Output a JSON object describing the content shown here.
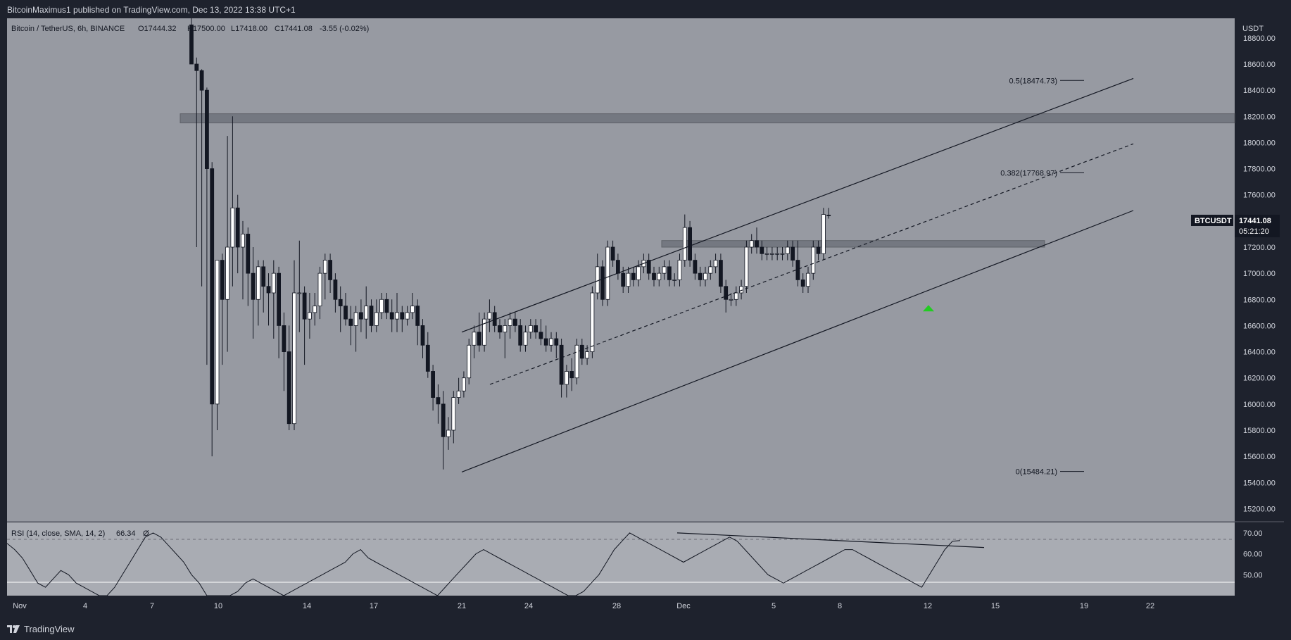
{
  "header": {
    "published_text": "BitcoinMaximus1 published on TradingView.com, Dec 13, 2022 13:38 UTC+1"
  },
  "legend": {
    "symbol": "Bitcoin / TetherUS, 6h, BINANCE",
    "open": "O17444.32",
    "high": "H17500.00",
    "low": "L17418.00",
    "close": "C17441.08",
    "change": "-3.55 (-0.02%)"
  },
  "price_axis": {
    "currency": "USDT",
    "ticks": [
      "18800.00",
      "18600.00",
      "18400.00",
      "18200.00",
      "18000.00",
      "17800.00",
      "17600.00",
      "17400.00",
      "17200.00",
      "17000.00",
      "16800.00",
      "16600.00",
      "16400.00",
      "16200.00",
      "16000.00",
      "15800.00",
      "15600.00",
      "15400.00",
      "15200.00"
    ],
    "tag_symbol": "BTCUSDT",
    "tag_price": "17441.08",
    "tag_countdown": "05:21:20"
  },
  "rsi": {
    "legend": "RSI (14, close, SMA, 14, 2)",
    "value": "66.34",
    "extra": "Ø",
    "ticks": [
      "70.00",
      "60.00",
      "50.00"
    ]
  },
  "time_axis": {
    "labels": [
      "Nov",
      "4",
      "7",
      "10",
      "14",
      "17",
      "21",
      "24",
      "28",
      "Dec",
      "5",
      "8",
      "12",
      "15",
      "19",
      "22"
    ]
  },
  "fib_labels": [
    "0.5(18474.73)",
    "0.382(17768.97)",
    "0(15484.21)"
  ],
  "footer": {
    "brand": "TradingView"
  },
  "colors": {
    "background": "#1e222d",
    "pane": "#979aa2",
    "bull_candle": "#ffffff",
    "bear_candle": "#131722",
    "marker": "#22cc22",
    "resistance_zone": "#6f737c"
  },
  "chart_data": {
    "type": "candlestick",
    "title": "Bitcoin / TetherUS, 6h, BINANCE",
    "interval": "6h",
    "ylim": [
      15100,
      18950
    ],
    "y_unit": "USDT",
    "last_price": 17441.08,
    "candles_ohlc": [
      [
        18900,
        18950,
        18700,
        18600
      ],
      [
        18600,
        18650,
        17200,
        18550
      ],
      [
        18550,
        18560,
        16900,
        18400
      ],
      [
        18400,
        18420,
        16300,
        17800
      ],
      [
        17800,
        17850,
        15600,
        16000
      ],
      [
        16000,
        16100,
        15800,
        17100
      ],
      [
        17100,
        17150,
        16300,
        16800
      ],
      [
        16800,
        18050,
        16400,
        17200
      ],
      [
        17200,
        18200,
        16900,
        17500
      ],
      [
        17500,
        17600,
        17000,
        17200
      ],
      [
        17200,
        17400,
        16800,
        17300
      ],
      [
        17300,
        17350,
        16750,
        17000
      ],
      [
        17000,
        17200,
        16500,
        16800
      ],
      [
        16800,
        17100,
        16600,
        17050
      ],
      [
        17050,
        17100,
        16700,
        16900
      ],
      [
        16900,
        17000,
        16600,
        16850
      ],
      [
        16850,
        17100,
        16500,
        17000
      ],
      [
        17000,
        17050,
        16350,
        16600
      ],
      [
        16600,
        16700,
        16100,
        16400
      ],
      [
        16400,
        16600,
        15800,
        15850
      ],
      [
        15850,
        17100,
        15800,
        16850
      ],
      [
        16850,
        17250,
        16550,
        16850
      ],
      [
        16850,
        16900,
        16300,
        16650
      ],
      [
        16650,
        16850,
        16500,
        16700
      ],
      [
        16700,
        16850,
        16600,
        16750
      ],
      [
        16750,
        17050,
        16650,
        17000
      ],
      [
        17000,
        17150,
        16800,
        17100
      ],
      [
        17100,
        17150,
        16850,
        16950
      ],
      [
        16950,
        17000,
        16700,
        16800
      ],
      [
        16800,
        16900,
        16550,
        16750
      ],
      [
        16750,
        16850,
        16600,
        16650
      ],
      [
        16650,
        16750,
        16450,
        16600
      ],
      [
        16600,
        16750,
        16400,
        16700
      ],
      [
        16700,
        16800,
        16550,
        16650
      ],
      [
        16650,
        16900,
        16500,
        16750
      ],
      [
        16750,
        16800,
        16550,
        16600
      ],
      [
        16600,
        16800,
        16550,
        16700
      ],
      [
        16700,
        16850,
        16650,
        16800
      ],
      [
        16800,
        16850,
        16650,
        16700
      ],
      [
        16700,
        16800,
        16550,
        16650
      ],
      [
        16650,
        16850,
        16550,
        16700
      ],
      [
        16700,
        16750,
        16550,
        16650
      ],
      [
        16650,
        16750,
        16600,
        16700
      ],
      [
        16700,
        16850,
        16650,
        16750
      ],
      [
        16750,
        16800,
        16450,
        16600
      ],
      [
        16600,
        16650,
        16350,
        16450
      ],
      [
        16450,
        16550,
        16200,
        16250
      ],
      [
        16250,
        16300,
        15950,
        16050
      ],
      [
        16050,
        16150,
        15850,
        16000
      ],
      [
        16000,
        16100,
        15500,
        15750
      ],
      [
        15750,
        15900,
        15650,
        15800
      ],
      [
        15800,
        16100,
        15700,
        16050
      ],
      [
        16050,
        16200,
        16000,
        16100
      ],
      [
        16100,
        16250,
        16050,
        16200
      ],
      [
        16200,
        16500,
        16150,
        16450
      ],
      [
        16450,
        16600,
        16350,
        16550
      ],
      [
        16550,
        16700,
        16400,
        16450
      ],
      [
        16450,
        16700,
        16400,
        16650
      ],
      [
        16650,
        16800,
        16550,
        16700
      ],
      [
        16700,
        16750,
        16550,
        16600
      ],
      [
        16600,
        16650,
        16500,
        16550
      ],
      [
        16550,
        16650,
        16350,
        16600
      ],
      [
        16600,
        16700,
        16500,
        16650
      ],
      [
        16650,
        16700,
        16550,
        16600
      ],
      [
        16600,
        16650,
        16400,
        16450
      ],
      [
        16450,
        16600,
        16400,
        16550
      ],
      [
        16550,
        16650,
        16500,
        16600
      ],
      [
        16600,
        16650,
        16500,
        16550
      ],
      [
        16550,
        16650,
        16450,
        16500
      ],
      [
        16500,
        16600,
        16400,
        16450
      ],
      [
        16450,
        16550,
        16400,
        16500
      ],
      [
        16500,
        16550,
        16350,
        16450
      ],
      [
        16450,
        16500,
        16050,
        16150
      ],
      [
        16150,
        16300,
        16050,
        16250
      ],
      [
        16250,
        16350,
        16100,
        16200
      ],
      [
        16200,
        16500,
        16150,
        16450
      ],
      [
        16450,
        16500,
        16300,
        16350
      ],
      [
        16350,
        16450,
        16300,
        16400
      ],
      [
        16400,
        16900,
        16350,
        16850
      ],
      [
        16850,
        17150,
        16800,
        17050
      ],
      [
        17050,
        17100,
        16750,
        16800
      ],
      [
        16800,
        17250,
        16750,
        17200
      ],
      [
        17200,
        17250,
        17050,
        17100
      ],
      [
        17100,
        17150,
        16950,
        17000
      ],
      [
        17000,
        17050,
        16850,
        16900
      ],
      [
        16900,
        17050,
        16850,
        17000
      ],
      [
        17000,
        17050,
        16900,
        16950
      ],
      [
        16950,
        17100,
        16900,
        17050
      ],
      [
        17050,
        17150,
        17000,
        17100
      ],
      [
        17100,
        17150,
        16950,
        17000
      ],
      [
        17000,
        17050,
        16900,
        16950
      ],
      [
        16950,
        17050,
        16900,
        17000
      ],
      [
        17000,
        17100,
        16950,
        17050
      ],
      [
        17050,
        17100,
        16900,
        16950
      ],
      [
        16950,
        17000,
        16900,
        16950
      ],
      [
        16950,
        17150,
        16900,
        17100
      ],
      [
        17100,
        17450,
        17050,
        17350
      ],
      [
        17350,
        17400,
        17050,
        17100
      ],
      [
        17100,
        17150,
        16950,
        17000
      ],
      [
        17000,
        17050,
        16900,
        16950
      ],
      [
        16950,
        17050,
        16900,
        17000
      ],
      [
        17000,
        17100,
        16950,
        17050
      ],
      [
        17050,
        17150,
        17000,
        17100
      ],
      [
        17100,
        17150,
        16850,
        16900
      ],
      [
        16900,
        16950,
        16700,
        16800
      ],
      [
        16800,
        16850,
        16750,
        16800
      ],
      [
        16800,
        16900,
        16750,
        16850
      ],
      [
        16850,
        16950,
        16800,
        16900
      ],
      [
        16900,
        17250,
        16850,
        17200
      ],
      [
        17200,
        17300,
        17150,
        17250
      ],
      [
        17250,
        17350,
        17150,
        17200
      ],
      [
        17200,
        17250,
        17100,
        17150
      ],
      [
        17150,
        17200,
        17100,
        17150
      ],
      [
        17150,
        17200,
        17100,
        17150
      ],
      [
        17150,
        17200,
        17100,
        17150
      ],
      [
        17150,
        17200,
        17100,
        17150
      ],
      [
        17150,
        17250,
        17100,
        17200
      ],
      [
        17200,
        17250,
        17050,
        17100
      ],
      [
        17100,
        17250,
        16900,
        16950
      ],
      [
        16950,
        17000,
        16850,
        16900
      ],
      [
        16900,
        17050,
        16850,
        17000
      ],
      [
        17000,
        17250,
        16950,
        17200
      ],
      [
        17200,
        17250,
        17100,
        17150
      ],
      [
        17150,
        17500,
        17100,
        17450
      ],
      [
        17444.32,
        17500,
        17418,
        17441.08
      ]
    ],
    "horizontal_zones": [
      [
        18150,
        18220
      ],
      [
        17200,
        17250
      ]
    ],
    "channel": {
      "upper": [
        [
          16550,
          18490
        ]
      ],
      "lower": [
        [
          15480,
          17480
        ]
      ],
      "middle": [
        [
          16150,
          17990
        ]
      ]
    },
    "fib_levels": [
      {
        "label": "0.5(18474.73)",
        "value": 18474.73
      },
      {
        "label": "0.382(17768.97)",
        "value": 17768.97
      },
      {
        "label": "0(15484.21)",
        "value": 15484.21
      }
    ],
    "marker": {
      "type": "up-arrow",
      "value": 16800
    },
    "rsi_series": [
      65,
      62,
      58,
      52,
      46,
      44,
      48,
      52,
      50,
      46,
      44,
      42,
      40,
      38,
      44,
      50,
      56,
      62,
      68,
      70,
      68,
      64,
      60,
      56,
      50,
      46,
      40,
      38,
      36,
      38,
      42,
      46,
      48,
      46,
      44,
      42,
      40,
      42,
      44,
      46,
      48,
      50,
      52,
      54,
      56,
      60,
      62,
      58,
      56,
      54,
      52,
      50,
      48,
      46,
      44,
      42,
      40,
      44,
      48,
      52,
      56,
      60,
      62,
      60,
      58,
      56,
      54,
      52,
      50,
      48,
      46,
      44,
      42,
      40,
      38,
      42,
      46,
      50,
      56,
      62,
      66,
      70,
      68,
      66,
      64,
      62,
      60,
      58,
      56,
      58,
      60,
      62,
      64,
      66,
      68,
      66,
      62,
      58,
      54,
      50,
      48,
      46,
      48,
      50,
      52,
      54,
      56,
      58,
      60,
      62,
      62,
      60,
      58,
      56,
      54,
      52,
      50,
      48,
      46,
      44,
      50,
      56,
      62,
      66,
      66.34
    ],
    "rsi_ylim": [
      40,
      75
    ],
    "rsi_trendline": [
      70,
      63
    ]
  }
}
